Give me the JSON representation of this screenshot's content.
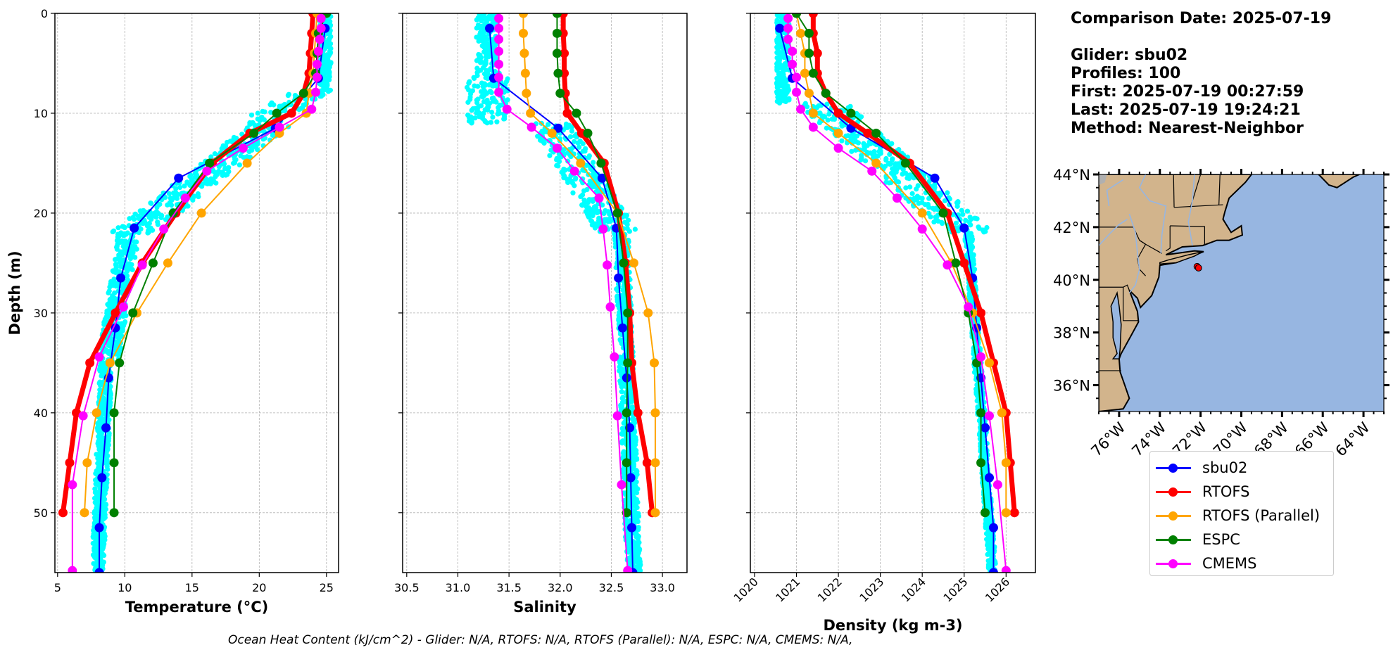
{
  "info": {
    "comparison_date": "Comparison Date: 2025-07-19",
    "glider": "Glider: sbu02",
    "profiles": "Profiles: 100",
    "first": "First: 2025-07-19 00:27:59",
    "last": "Last: 2025-07-19 19:24:21",
    "method": "Method: Nearest-Neighbor"
  },
  "footer": {
    "ohc_text": "Ocean Heat Content (kJ/cm^2) - Glider: N/A,  RTOFS: N/A,  RTOFS (Parallel): N/A,  ESPC: N/A,  CMEMS: N/A,"
  },
  "legend": [
    {
      "name": "sbu02",
      "color": "#0000ff"
    },
    {
      "name": "RTOFS",
      "color": "#ff0000"
    },
    {
      "name": "RTOFS (Parallel)",
      "color": "#ffa500"
    },
    {
      "name": "ESPC",
      "color": "#008000"
    },
    {
      "name": "CMEMS",
      "color": "#ff00ff"
    }
  ],
  "chart_data": [
    {
      "type": "line",
      "title": "",
      "xlabel": "Temperature (°C)",
      "ylabel": "Depth (m)",
      "xlim": [
        4.8,
        25.9
      ],
      "ylim": [
        56,
        0
      ],
      "xticks": [
        5,
        10,
        15,
        20,
        25
      ],
      "yticks": [
        0,
        10,
        20,
        30,
        40,
        50
      ],
      "grid": true,
      "scatter_color": "#00ffff",
      "series": [
        {
          "name": "sbu02",
          "color": "#0000ff",
          "depth": [
            1.5,
            6.5,
            11.5,
            16.5,
            21.5,
            26.5,
            31.5,
            36.5,
            41.5,
            46.5,
            51.5,
            56
          ],
          "values": [
            24.9,
            24.4,
            21.2,
            14.0,
            10.7,
            9.7,
            9.3,
            8.8,
            8.6,
            8.3,
            8.1,
            8.1
          ]
        },
        {
          "name": "RTOFS",
          "color": "#ff0000",
          "depth": [
            0,
            2,
            4,
            6,
            8,
            10,
            12,
            15,
            20,
            25,
            30,
            35,
            40,
            45,
            50
          ],
          "values": [
            24.0,
            23.9,
            23.8,
            23.7,
            23.3,
            22.4,
            19.3,
            16.5,
            13.8,
            11.3,
            9.3,
            7.4,
            6.4,
            5.9,
            5.4
          ]
        },
        {
          "name": "RTOFS (Parallel)",
          "color": "#ffa500",
          "depth": [
            0,
            2,
            4,
            6,
            8,
            10,
            12,
            15,
            20,
            25,
            30,
            35,
            40,
            45,
            50
          ],
          "values": [
            24.3,
            24.2,
            24.1,
            24.0,
            23.7,
            23.5,
            21.5,
            19.1,
            15.7,
            13.2,
            10.9,
            8.9,
            7.9,
            7.2,
            7.0
          ]
        },
        {
          "name": "ESPC",
          "color": "#008000",
          "depth": [
            0,
            2,
            4,
            6,
            8,
            10,
            12,
            15,
            20,
            25,
            30,
            35,
            40,
            45,
            50
          ],
          "values": [
            25.0,
            24.4,
            24.3,
            24.2,
            23.3,
            21.3,
            19.6,
            16.3,
            13.6,
            12.1,
            10.6,
            9.6,
            9.2,
            9.2,
            9.2
          ]
        },
        {
          "name": "CMEMS",
          "color": "#ff00ff",
          "depth": [
            0.5,
            1.5,
            2.6,
            3.8,
            5.1,
            6.4,
            7.9,
            9.6,
            11.4,
            13.5,
            15.8,
            18.5,
            21.6,
            25.2,
            29.4,
            34.4,
            40.3,
            47.2,
            55.8
          ],
          "values": [
            24.6,
            24.6,
            24.5,
            24.4,
            24.3,
            24.3,
            24.2,
            23.9,
            21.5,
            18.8,
            16.1,
            14.5,
            12.9,
            11.3,
            9.9,
            8.1,
            6.9,
            6.1,
            6.1
          ]
        }
      ]
    },
    {
      "type": "line",
      "title": "",
      "xlabel": "Salinity",
      "ylabel": "",
      "xlim": [
        30.46,
        33.24
      ],
      "ylim": [
        56,
        0
      ],
      "xticks": [
        30.5,
        31.0,
        31.5,
        32.0,
        32.5,
        33.0
      ],
      "xtick_labels": [
        "30.5",
        "31.0",
        "31.5",
        "32.0",
        "32.5",
        "33.0"
      ],
      "yticks": [
        0,
        10,
        20,
        30,
        40,
        50
      ],
      "grid": true,
      "scatter_color": "#00ffff",
      "series": [
        {
          "name": "sbu02",
          "color": "#0000ff",
          "depth": [
            1.5,
            6.5,
            11.5,
            16.5,
            21.5,
            26.5,
            31.5,
            36.5,
            41.5,
            46.5,
            51.5,
            56
          ],
          "values": [
            31.31,
            31.35,
            31.98,
            32.41,
            32.55,
            32.57,
            32.61,
            32.65,
            32.68,
            32.69,
            32.7,
            32.71
          ]
        },
        {
          "name": "RTOFS",
          "color": "#ff0000",
          "depth": [
            0,
            2,
            4,
            6,
            8,
            10,
            12,
            15,
            20,
            25,
            30,
            35,
            40,
            45,
            50
          ],
          "values": [
            32.03,
            32.03,
            32.04,
            32.04,
            32.05,
            32.07,
            32.21,
            32.43,
            32.57,
            32.64,
            32.68,
            32.7,
            32.76,
            32.85,
            32.9
          ]
        },
        {
          "name": "RTOFS (Parallel)",
          "color": "#ffa500",
          "depth": [
            0,
            2,
            4,
            6,
            8,
            10,
            12,
            15,
            20,
            25,
            30,
            35,
            40,
            45,
            50
          ],
          "values": [
            31.64,
            31.64,
            31.65,
            31.66,
            31.67,
            31.71,
            31.92,
            32.2,
            32.56,
            32.72,
            32.86,
            32.92,
            32.93,
            32.93,
            32.93
          ]
        },
        {
          "name": "ESPC",
          "color": "#008000",
          "depth": [
            0,
            2,
            4,
            6,
            8,
            10,
            12,
            15,
            20,
            25,
            30,
            35,
            40,
            45,
            50
          ],
          "values": [
            31.97,
            31.97,
            31.97,
            31.98,
            32.0,
            32.16,
            32.27,
            32.4,
            32.56,
            32.62,
            32.66,
            32.66,
            32.65,
            32.65,
            32.65
          ]
        },
        {
          "name": "CMEMS",
          "color": "#ff00ff",
          "depth": [
            0.5,
            1.5,
            2.6,
            3.8,
            5.1,
            6.4,
            7.9,
            9.6,
            11.4,
            13.5,
            15.8,
            18.5,
            21.6,
            25.2,
            29.4,
            34.4,
            40.3,
            47.2,
            55.8
          ],
          "values": [
            31.4,
            31.4,
            31.4,
            31.4,
            31.4,
            31.4,
            31.4,
            31.48,
            31.72,
            31.97,
            32.14,
            32.38,
            32.42,
            32.46,
            32.49,
            32.53,
            32.56,
            32.6,
            32.66
          ]
        }
      ]
    },
    {
      "type": "line",
      "title": "",
      "xlabel": "Density (kg m-3)",
      "ylabel": "",
      "xlim": [
        1019.9,
        1026.7
      ],
      "ylim": [
        56,
        0
      ],
      "xticks": [
        1020,
        1021,
        1022,
        1023,
        1024,
        1025,
        1026
      ],
      "yticks": [
        0,
        10,
        20,
        30,
        40,
        50
      ],
      "grid": true,
      "scatter_color": "#00ffff",
      "series": [
        {
          "name": "sbu02",
          "color": "#0000ff",
          "depth": [
            1.5,
            6.5,
            11.5,
            16.5,
            21.5,
            26.5,
            31.5,
            36.5,
            41.5,
            46.5,
            51.5,
            56
          ],
          "values": [
            1020.6,
            1020.9,
            1022.3,
            1024.3,
            1025.0,
            1025.2,
            1025.3,
            1025.4,
            1025.5,
            1025.6,
            1025.7,
            1025.7
          ]
        },
        {
          "name": "RTOFS",
          "color": "#ff0000",
          "depth": [
            0,
            2,
            4,
            6,
            8,
            10,
            12,
            15,
            20,
            25,
            30,
            35,
            40,
            45,
            50
          ],
          "values": [
            1021.4,
            1021.4,
            1021.5,
            1021.5,
            1021.7,
            1022.0,
            1022.7,
            1023.7,
            1024.6,
            1025.0,
            1025.4,
            1025.7,
            1026.0,
            1026.1,
            1026.2
          ]
        },
        {
          "name": "RTOFS (Parallel)",
          "color": "#ffa500",
          "depth": [
            0,
            2,
            4,
            6,
            8,
            10,
            12,
            15,
            20,
            25,
            30,
            35,
            40,
            45,
            50
          ],
          "values": [
            1021.0,
            1021.1,
            1021.2,
            1021.2,
            1021.3,
            1021.4,
            1022.0,
            1022.9,
            1024.0,
            1024.7,
            1025.2,
            1025.6,
            1025.9,
            1026.0,
            1026.0
          ]
        },
        {
          "name": "ESPC",
          "color": "#008000",
          "depth": [
            0,
            2,
            4,
            6,
            8,
            10,
            12,
            15,
            20,
            25,
            30,
            35,
            40,
            45,
            50
          ],
          "values": [
            1021.0,
            1021.3,
            1021.3,
            1021.4,
            1021.7,
            1022.3,
            1022.9,
            1023.6,
            1024.5,
            1024.8,
            1025.1,
            1025.3,
            1025.4,
            1025.4,
            1025.5
          ]
        },
        {
          "name": "CMEMS",
          "color": "#ff00ff",
          "depth": [
            0.5,
            1.5,
            2.6,
            3.8,
            5.1,
            6.4,
            7.9,
            9.6,
            11.4,
            13.5,
            15.8,
            18.5,
            21.6,
            25.2,
            29.4,
            34.4,
            40.3,
            47.2,
            55.8
          ],
          "values": [
            1020.8,
            1020.8,
            1020.8,
            1020.9,
            1020.9,
            1021.0,
            1021.0,
            1021.1,
            1021.4,
            1022.0,
            1022.8,
            1023.4,
            1024.0,
            1024.6,
            1025.1,
            1025.4,
            1025.6,
            1025.8,
            1026.0
          ]
        }
      ]
    },
    {
      "type": "map",
      "title": "",
      "lon_range": [
        -77,
        -63
      ],
      "lat_range": [
        35,
        44
      ],
      "lon_ticks": [
        -76,
        -74,
        -72,
        -70,
        -68,
        -66,
        -64
      ],
      "lon_tick_labels": [
        "76°W",
        "74°W",
        "72°W",
        "70°W",
        "68°W",
        "66°W",
        "64°W"
      ],
      "lat_ticks": [
        36,
        38,
        40,
        42,
        44
      ],
      "lat_tick_labels": [
        "36°N",
        "38°N",
        "40°N",
        "42°N",
        "44°N"
      ],
      "land_color": "#d2b48c",
      "ocean_color": "#97b6e1",
      "glider_location": {
        "lon": -72.1,
        "lat": 40.45,
        "color": "#ff0000"
      }
    }
  ]
}
